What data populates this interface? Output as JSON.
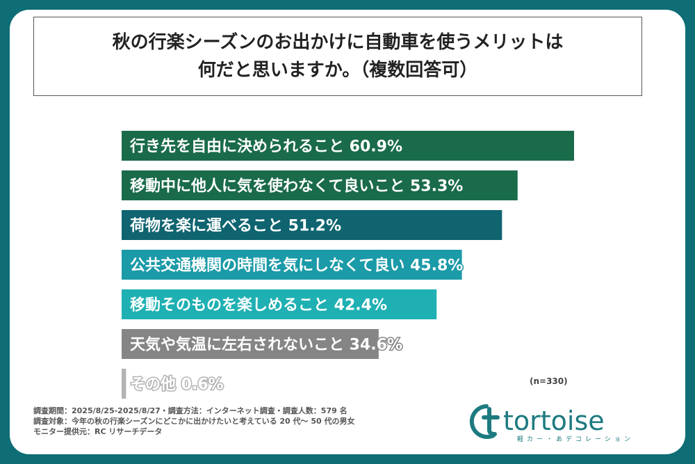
{
  "title": {
    "line1": "秋の行楽シーズンのお出かけに自動車を使うメリットは",
    "line2": "何だと思いますか。（複数回答可）"
  },
  "chart_data": {
    "type": "bar",
    "orientation": "horizontal",
    "unit": "%",
    "categories": [
      "行き先を自由に決められること",
      "移動中に他人に気を使わなくて良いこと",
      "荷物を楽に運べること",
      "公共交通機関の時間を気にしなくて良い",
      "移動そのものを楽しめること",
      "天気や気温に左右されないこと",
      "その他"
    ],
    "values": [
      60.9,
      53.3,
      51.2,
      45.8,
      42.4,
      34.6,
      0.6
    ],
    "value_labels": [
      "60.9%",
      "53.3%",
      "51.2%",
      "45.8%",
      "42.4%",
      "34.6%",
      "0.6%"
    ],
    "colors": [
      "#1a6b4a",
      "#1a6b4a",
      "#0f6470",
      "#1b9aa8",
      "#1fb0b3",
      "#858585",
      "#b3b3b3"
    ],
    "xlim": [
      0,
      60.9
    ],
    "legend": "none",
    "grid": false
  },
  "note": "(n=330)",
  "footer": {
    "line1": "調査期間：2025/8/25-2025/8/27・調査方法：インターネット調査・調査人数：579 名",
    "line2": "調査対象：今年の秋の行楽シーズンにどこかに出かけたいと考えている 20 代〜 50 代の男女",
    "line3": "モニター提供元：RC リサーチデータ"
  },
  "logo": {
    "name": "tortoise",
    "tagline": "軽カー・あデコレーション",
    "color": "#1d7a80"
  }
}
